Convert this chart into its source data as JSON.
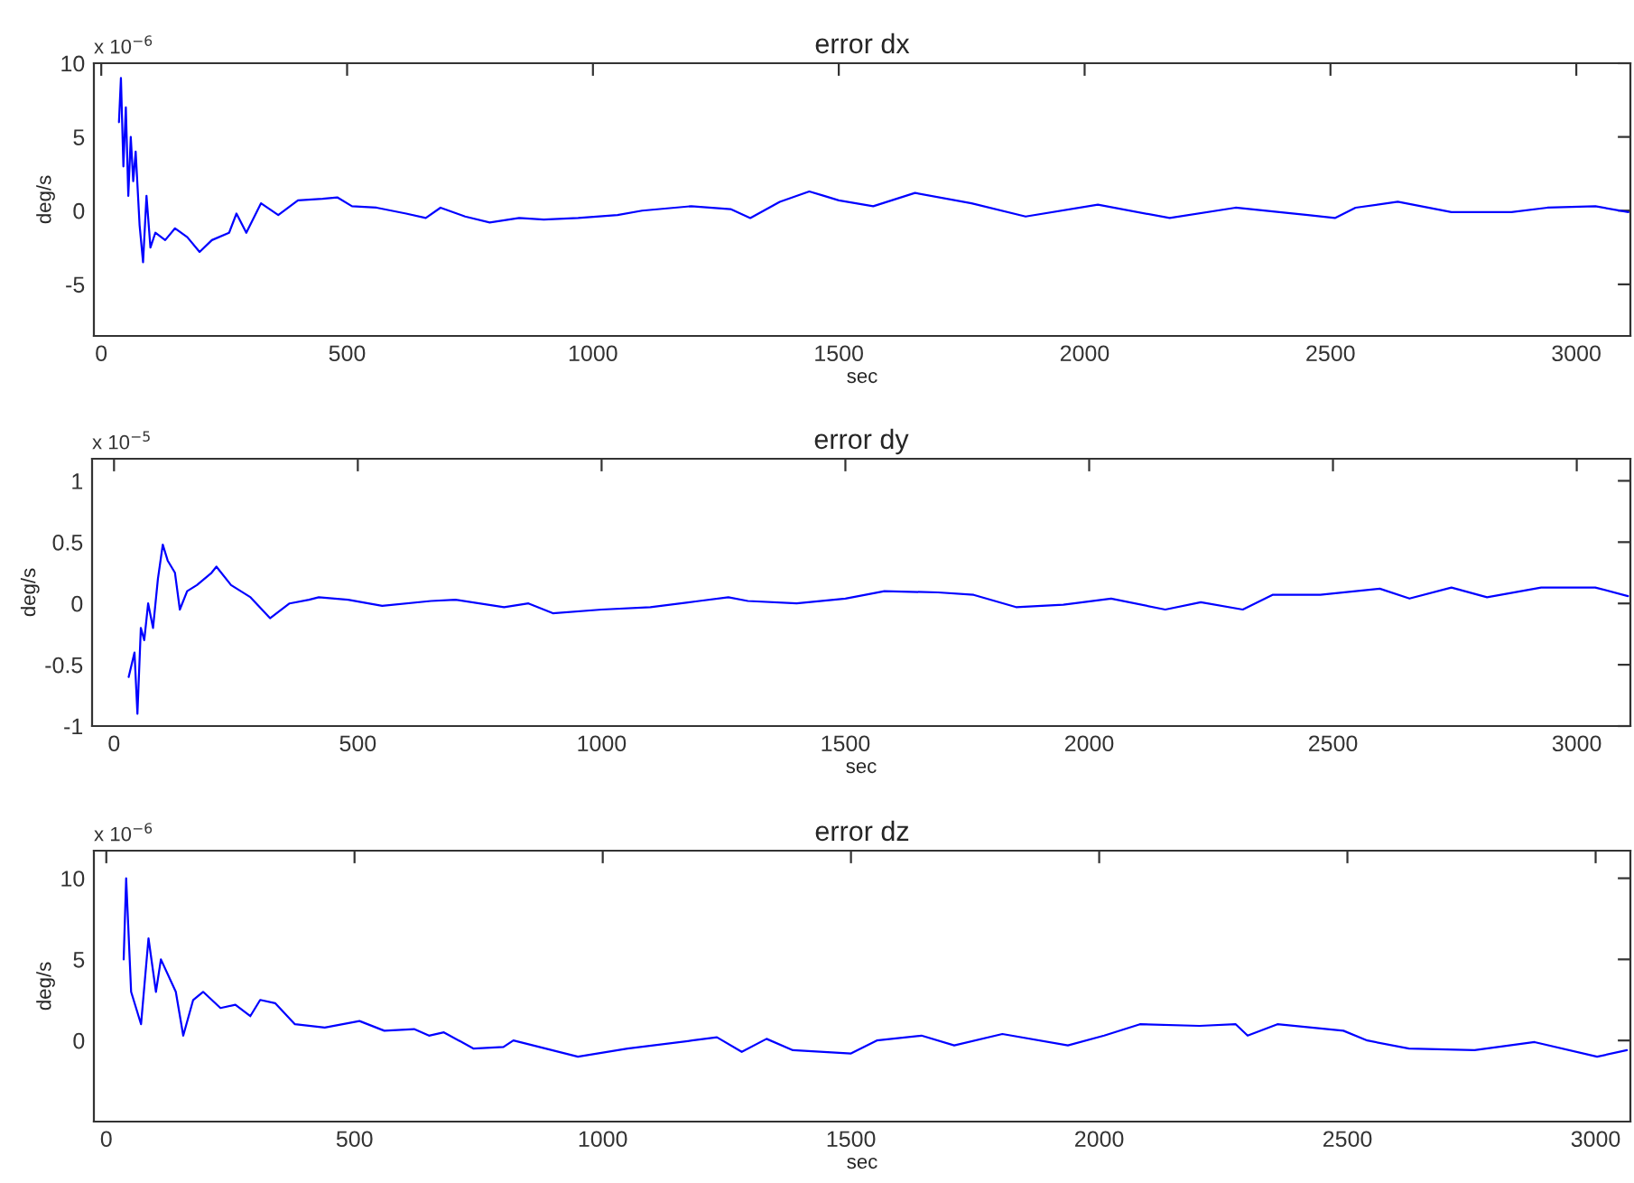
{
  "chart_data": [
    {
      "type": "line",
      "title": "error dx",
      "xlabel": "sec",
      "ylabel": "deg/s",
      "annotations": [
        "x 10$^{−6}$"
      ],
      "xlim": [
        -15,
        3110
      ],
      "ylim": [
        -8.5,
        10
      ],
      "xticks": [
        0,
        500,
        1000,
        1500,
        2000,
        2500,
        3000
      ],
      "yticks": [
        -5,
        0,
        5,
        10
      ],
      "grid": false,
      "series": [
        {
          "color": "#0000ff",
          "x": [
            36,
            40,
            45,
            50,
            55,
            60,
            65,
            70,
            78,
            85,
            92,
            100,
            110,
            130,
            150,
            175,
            200,
            225,
            260,
            275,
            295,
            325,
            360,
            400,
            450,
            480,
            510,
            560,
            620,
            660,
            690,
            740,
            790,
            850,
            900,
            970,
            1050,
            1100,
            1200,
            1280,
            1320,
            1380,
            1440,
            1470,
            1500,
            1570,
            1655,
            1770,
            1880,
            2027,
            2173,
            2307,
            2454,
            2509,
            2551,
            2637,
            2746,
            2868,
            2941,
            3039,
            3106
          ],
          "values": [
            6,
            9,
            3,
            7,
            1,
            5,
            2,
            4,
            -1,
            -3.5,
            1,
            -2.5,
            -1.5,
            -2,
            -1.2,
            -1.8,
            -2.8,
            -2.0,
            -1.5,
            -0.2,
            -1.5,
            0.5,
            -0.3,
            0.7,
            0.8,
            0.9,
            0.3,
            0.2,
            -0.2,
            -0.5,
            0.2,
            -0.4,
            -0.8,
            -0.5,
            -0.6,
            -0.5,
            -0.3,
            0,
            0.3,
            0.1,
            -0.5,
            0.6,
            1.3,
            1.0,
            0.7,
            0.3,
            1.2,
            0.5,
            -0.4,
            0.4,
            -0.5,
            0.2,
            -0.3,
            -0.5,
            0.2,
            0.6,
            -0.1,
            -0.1,
            0.2,
            0.3,
            -0.1
          ]
        }
      ]
    },
    {
      "type": "line",
      "title": "error dy",
      "xlabel": "sec",
      "ylabel": "deg/s",
      "annotations": [
        "x 10$^{−5}$"
      ],
      "xlim": [
        -45,
        3110
      ],
      "ylim": [
        -1,
        1.18
      ],
      "xticks": [
        0,
        500,
        1000,
        1500,
        2000,
        2500,
        3000
      ],
      "yticks": [
        -1,
        -0.5,
        0,
        0.5,
        1
      ],
      "grid": false,
      "series": [
        {
          "color": "#0000ff",
          "x": [
            30,
            42,
            48,
            55,
            62,
            70,
            80,
            90,
            100,
            110,
            125,
            135,
            150,
            170,
            200,
            210,
            240,
            280,
            320,
            360,
            400,
            420,
            480,
            550,
            650,
            700,
            800,
            850,
            900,
            1000,
            1100,
            1200,
            1260,
            1300,
            1400,
            1500,
            1580,
            1690,
            1763,
            1850,
            1947,
            2045,
            2156,
            2229,
            2315,
            2376,
            2474,
            2596,
            2657,
            2743,
            2816,
            2927,
            3038,
            3105
          ],
          "values": [
            -0.6,
            -0.4,
            -0.9,
            -0.2,
            -0.3,
            0,
            -0.2,
            0.2,
            0.48,
            0.35,
            0.25,
            -0.05,
            0.1,
            0.15,
            0.25,
            0.3,
            0.15,
            0.05,
            -0.12,
            0,
            0.03,
            0.05,
            0.03,
            -0.02,
            0.02,
            0.03,
            -0.03,
            0.0,
            -0.08,
            -0.05,
            -0.03,
            0.02,
            0.05,
            0.02,
            0.0,
            0.04,
            0.1,
            0.09,
            0.07,
            -0.03,
            -0.01,
            0.04,
            -0.05,
            0.01,
            -0.05,
            0.07,
            0.07,
            0.12,
            0.04,
            0.13,
            0.05,
            0.13,
            0.13,
            0.06
          ]
        }
      ]
    },
    {
      "type": "line",
      "title": "error dz",
      "xlabel": "sec",
      "ylabel": "deg/s",
      "annotations": [
        "x 10$^{−6}$"
      ],
      "xlim": [
        -25,
        3070
      ],
      "ylim": [
        -5,
        11.7
      ],
      "xticks": [
        0,
        500,
        1000,
        1500,
        2000,
        2500,
        3000
      ],
      "yticks": [
        0,
        5,
        10
      ],
      "grid": false,
      "series": [
        {
          "color": "#0000ff",
          "x": [
            35,
            40,
            50,
            70,
            85,
            100,
            110,
            140,
            155,
            175,
            195,
            230,
            260,
            290,
            310,
            340,
            380,
            440,
            510,
            560,
            620,
            650,
            680,
            740,
            800,
            820,
            950,
            1050,
            1180,
            1230,
            1280,
            1330,
            1383,
            1500,
            1552,
            1642,
            1708,
            1805,
            1937,
            2010,
            2082,
            2202,
            2275,
            2299,
            2359,
            2492,
            2540,
            2624,
            2756,
            2877,
            3003,
            3063
          ],
          "values": [
            5,
            10,
            3,
            1,
            6.3,
            3,
            5,
            3,
            0.3,
            2.5,
            3,
            2,
            2.2,
            1.5,
            2.5,
            2.3,
            1.0,
            0.8,
            1.2,
            0.6,
            0.7,
            0.3,
            0.5,
            -0.5,
            -0.4,
            0,
            -1.0,
            -0.5,
            0,
            0.2,
            -0.7,
            0.1,
            -0.6,
            -0.8,
            0,
            0.3,
            -0.3,
            0.4,
            -0.3,
            0.3,
            1.0,
            0.9,
            1.0,
            0.3,
            1.0,
            0.6,
            0,
            -0.5,
            -0.6,
            -0.1,
            -1.0,
            -0.6
          ]
        }
      ]
    }
  ]
}
